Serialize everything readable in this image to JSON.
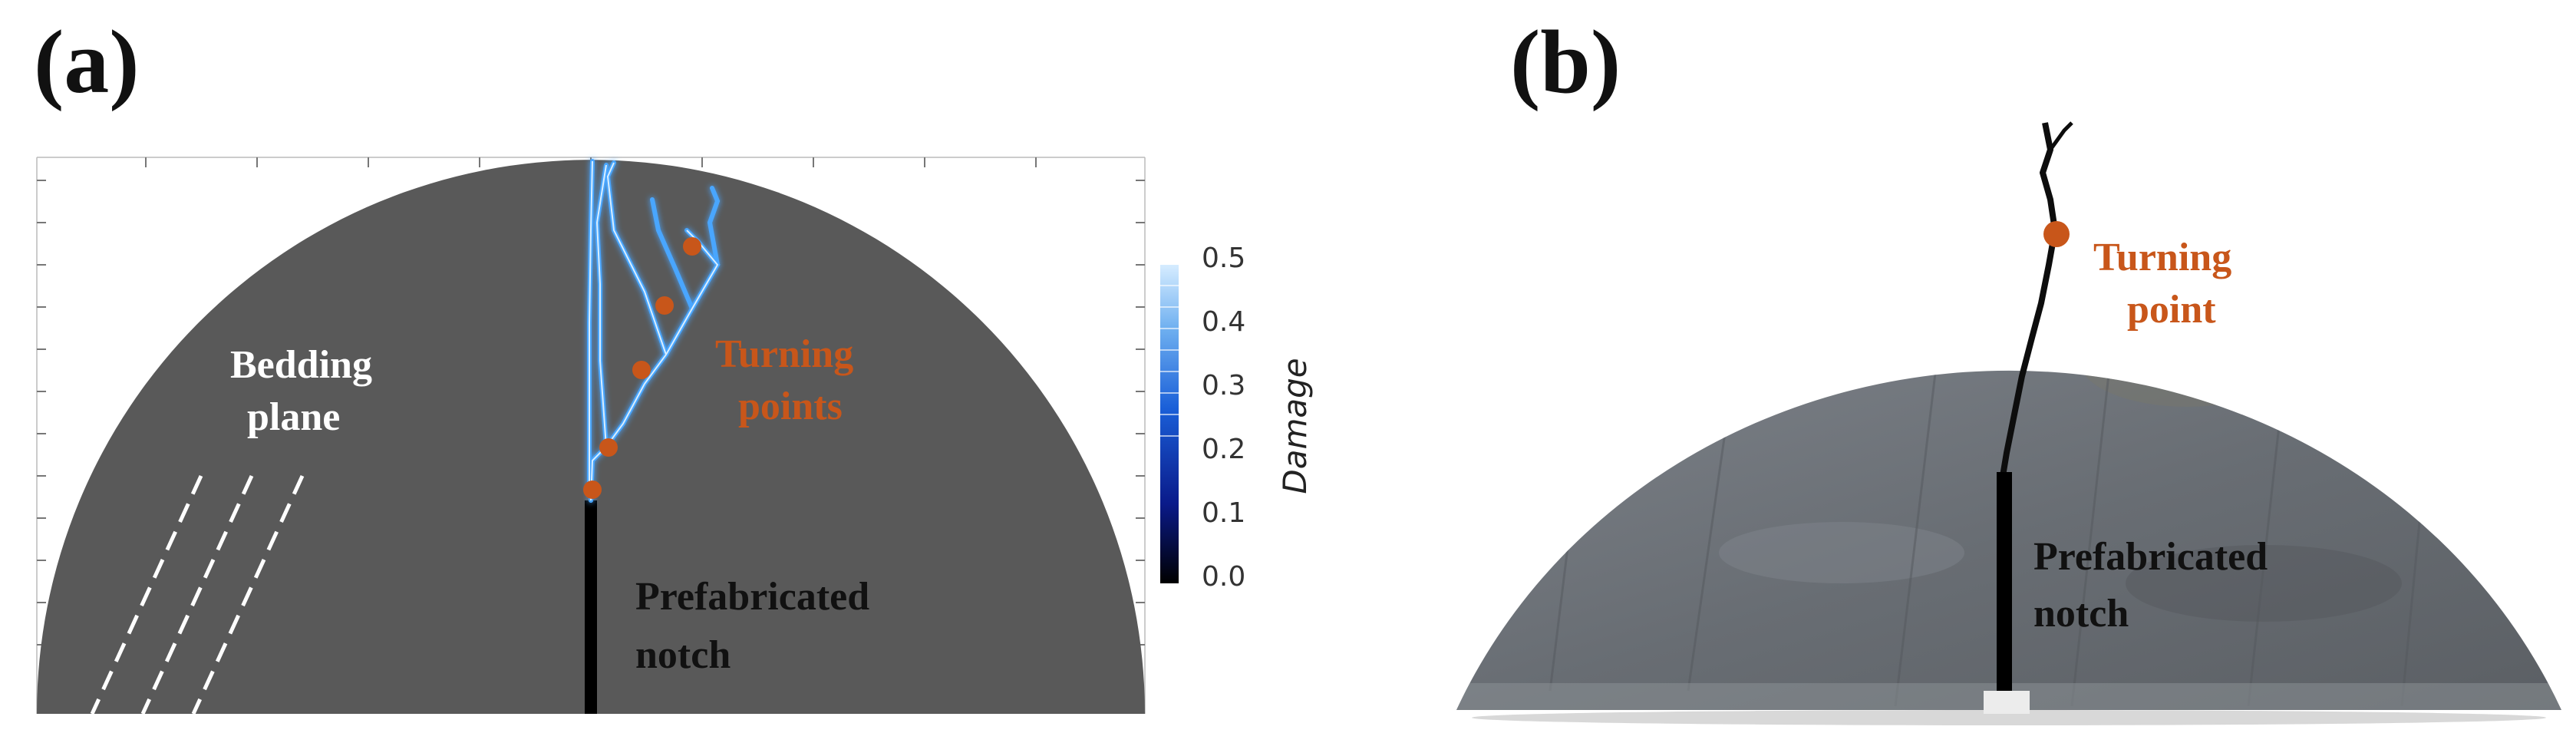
{
  "panels": {
    "a": {
      "label": "(a)",
      "bedding_label_line1": "Bedding",
      "bedding_label_line2": "plane",
      "turning_label_line1": "Turning",
      "turning_label_line2": "points",
      "notch_label_line1": "Prefabricated",
      "notch_label_line2": "notch",
      "colorbar": {
        "title": "Damage",
        "ticks": [
          "0.5",
          "0.4",
          "0.3",
          "0.2",
          "0.1",
          "0.0"
        ]
      }
    },
    "b": {
      "label": "(b)",
      "turning_label_line1": "Turning",
      "turning_label_line2": "point",
      "notch_label_line1": "Prefabricated",
      "notch_label_line2": "notch"
    }
  },
  "colors": {
    "specimen_a": "#595959",
    "specimen_b": "#6c7177",
    "turning_point": "#c8561a",
    "crack_glow": "#4aa6ff",
    "annotation_orange": "#c8561a"
  }
}
